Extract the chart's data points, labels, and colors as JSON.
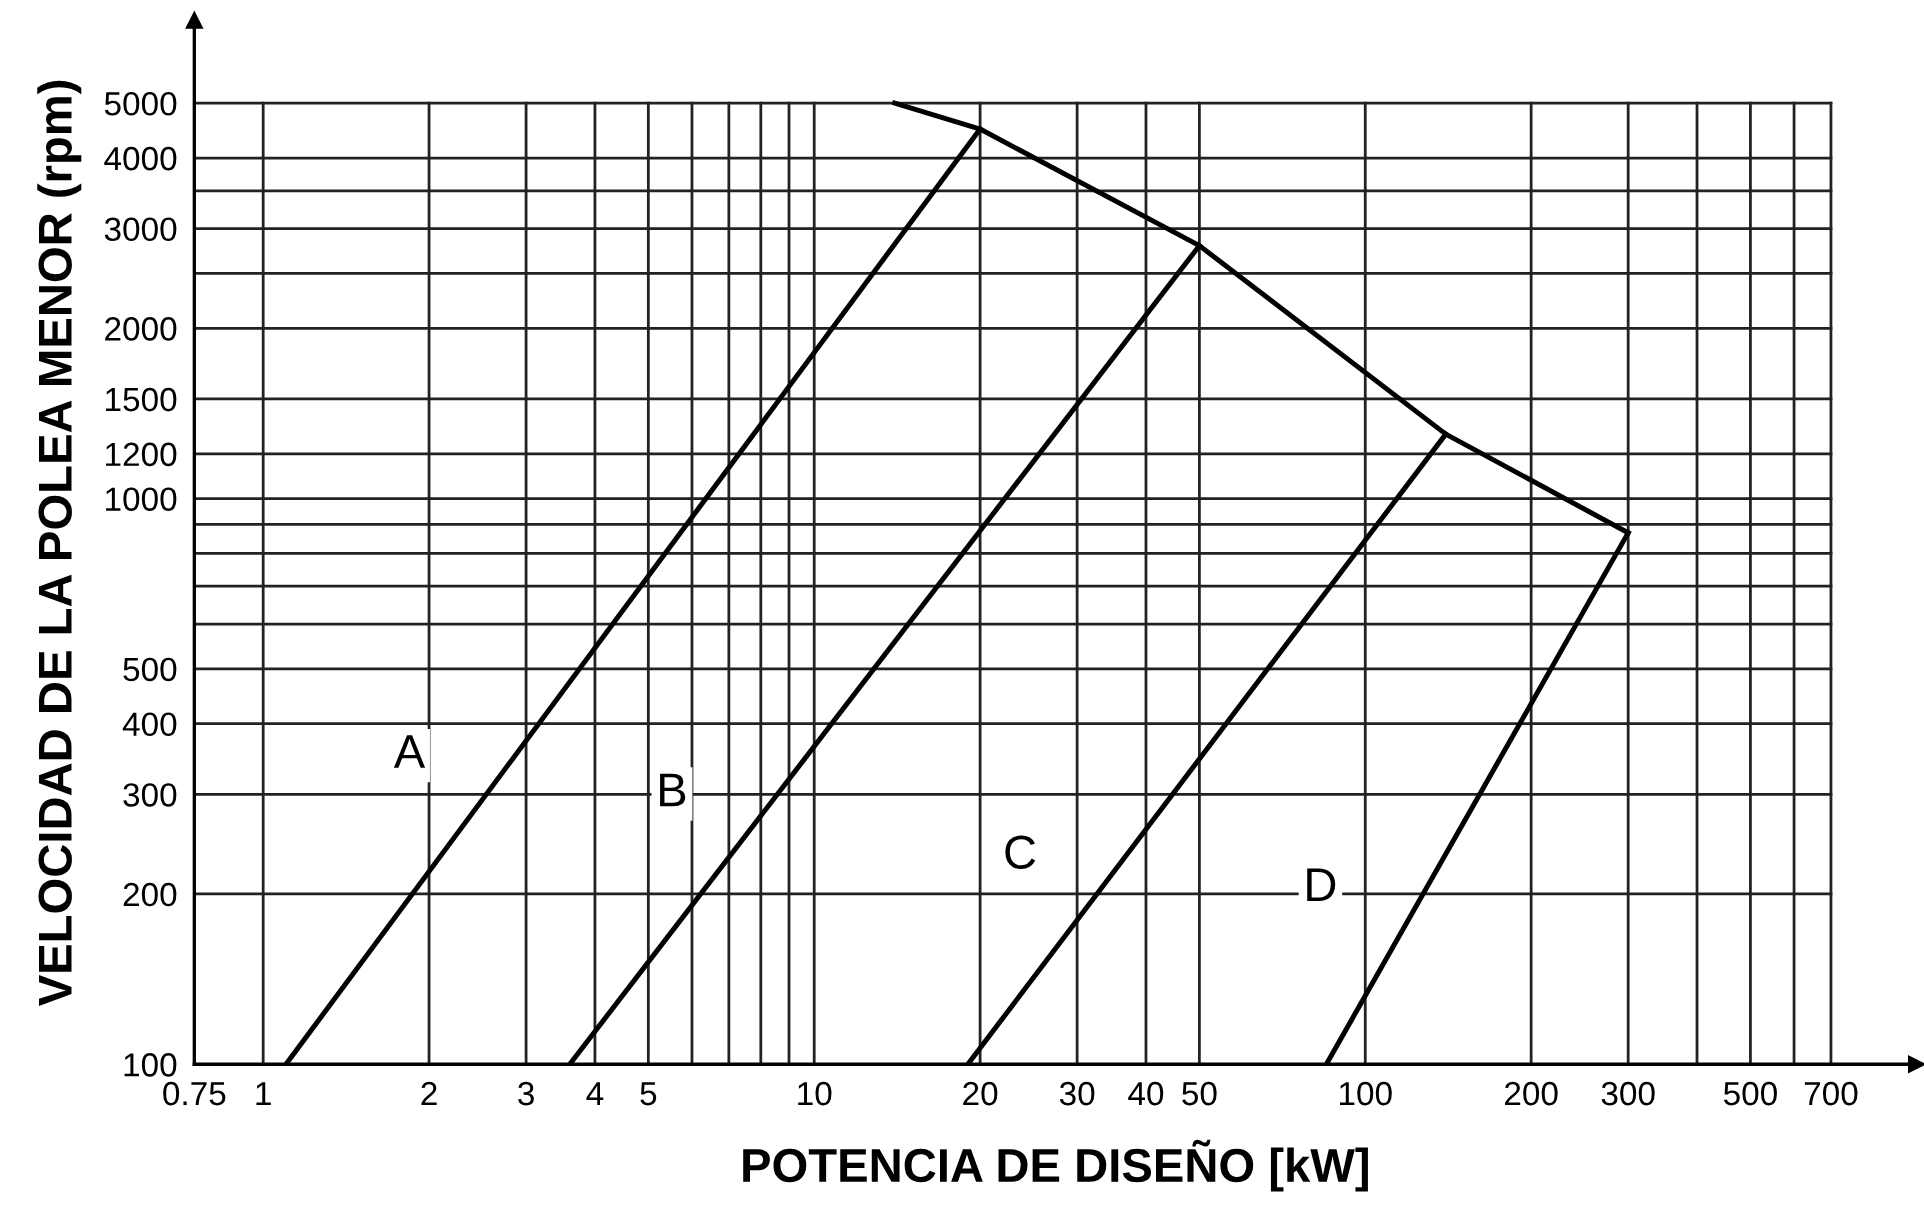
{
  "chart_data": {
    "type": "line",
    "xlabel": "POTENCIA DE DISEÑO [kW]",
    "ylabel": "VELOCIDAD DE LA POLEA MENOR (rpm)",
    "log": "xy",
    "grid": true,
    "marker": "none",
    "line_style": "solid",
    "xlim": [
      0.75,
      1000
    ],
    "ylim": [
      100,
      7000
    ],
    "xticks": [
      0.75,
      1,
      2,
      3,
      4,
      5,
      {
        "value": 6,
        "label": null
      },
      {
        "value": 7,
        "label": null
      },
      {
        "value": 8,
        "label": null
      },
      {
        "value": 9,
        "label": null
      },
      10,
      20,
      30,
      40,
      50,
      100,
      200,
      300,
      {
        "value": 400,
        "label": null
      },
      500,
      {
        "value": 600,
        "label": null
      },
      700
    ],
    "yticks": [
      100,
      200,
      300,
      400,
      500,
      {
        "value": 600,
        "label": null
      },
      {
        "value": 700,
        "label": null
      },
      {
        "value": 800,
        "label": null
      },
      {
        "value": 900,
        "label": null
      },
      1000,
      1200,
      1500,
      2000,
      {
        "value": 2500,
        "label": null
      },
      3000,
      {
        "value": 3500,
        "label": null
      },
      4000,
      5000
    ],
    "series": [
      {
        "name": "A",
        "color": "#000000",
        "x": [
          1.1,
          20
        ],
        "values": [
          100,
          4500
        ]
      },
      {
        "name": "B",
        "color": "#000000",
        "x": [
          3.6,
          50
        ],
        "values": [
          100,
          2800
        ]
      },
      {
        "name": "C",
        "color": "#000000",
        "x": [
          19,
          140
        ],
        "values": [
          100,
          1300
        ]
      },
      {
        "name": "D",
        "color": "#000000",
        "x": [
          85,
          300
        ],
        "values": [
          100,
          870
        ]
      },
      {
        "color": "#000000",
        "x": [
          14,
          20,
          50,
          140,
          300
        ],
        "values": [
          5000,
          4500,
          2800,
          1300,
          870
        ]
      }
    ]
  }
}
